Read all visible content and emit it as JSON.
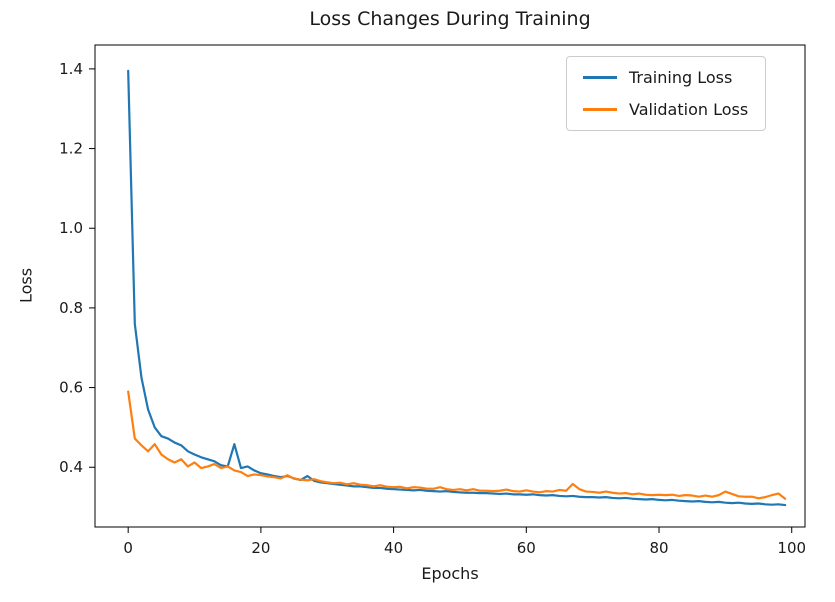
{
  "chart_data": {
    "type": "line",
    "title": "Loss Changes During Training",
    "xlabel": "Epochs",
    "ylabel": "Loss",
    "xlim": [
      -5,
      102
    ],
    "ylim": [
      0.25,
      1.46
    ],
    "grid": false,
    "legend_position": "upper right",
    "xticks": {
      "values": [
        0,
        20,
        40,
        60,
        80,
        100
      ],
      "labels": [
        "0",
        "20",
        "40",
        "60",
        "80",
        "100"
      ]
    },
    "yticks": {
      "values": [
        0.4,
        0.6,
        0.8,
        1.0,
        1.2,
        1.4
      ],
      "labels": [
        "0.4",
        "0.6",
        "0.8",
        "1.0",
        "1.2",
        "1.4"
      ]
    },
    "x": {
      "start": 0,
      "step": 1,
      "count": 100
    },
    "series": [
      {
        "id": "training-loss",
        "name": "Training Loss",
        "color": "#1f77b4",
        "values": [
          1.395,
          0.76,
          0.625,
          0.545,
          0.5,
          0.478,
          0.472,
          0.462,
          0.455,
          0.44,
          0.432,
          0.425,
          0.42,
          0.415,
          0.405,
          0.402,
          0.458,
          0.398,
          0.402,
          0.392,
          0.385,
          0.382,
          0.378,
          0.375,
          0.378,
          0.372,
          0.368,
          0.378,
          0.366,
          0.362,
          0.36,
          0.358,
          0.356,
          0.354,
          0.352,
          0.352,
          0.35,
          0.348,
          0.348,
          0.346,
          0.345,
          0.344,
          0.343,
          0.342,
          0.343,
          0.341,
          0.34,
          0.339,
          0.34,
          0.338,
          0.337,
          0.336,
          0.336,
          0.335,
          0.335,
          0.334,
          0.333,
          0.334,
          0.332,
          0.332,
          0.331,
          0.332,
          0.33,
          0.329,
          0.33,
          0.328,
          0.327,
          0.328,
          0.326,
          0.325,
          0.325,
          0.324,
          0.325,
          0.323,
          0.322,
          0.323,
          0.321,
          0.32,
          0.319,
          0.32,
          0.318,
          0.317,
          0.318,
          0.316,
          0.315,
          0.314,
          0.315,
          0.313,
          0.312,
          0.313,
          0.311,
          0.31,
          0.311,
          0.309,
          0.308,
          0.309,
          0.307,
          0.306,
          0.307,
          0.305
        ]
      },
      {
        "id": "validation-loss",
        "name": "Validation Loss",
        "color": "#ff7f0e",
        "values": [
          0.59,
          0.472,
          0.455,
          0.44,
          0.458,
          0.432,
          0.42,
          0.412,
          0.42,
          0.402,
          0.412,
          0.398,
          0.402,
          0.408,
          0.398,
          0.402,
          0.392,
          0.388,
          0.378,
          0.382,
          0.38,
          0.377,
          0.375,
          0.372,
          0.38,
          0.371,
          0.369,
          0.367,
          0.37,
          0.365,
          0.362,
          0.36,
          0.361,
          0.357,
          0.36,
          0.356,
          0.355,
          0.352,
          0.355,
          0.351,
          0.35,
          0.351,
          0.347,
          0.35,
          0.349,
          0.346,
          0.346,
          0.35,
          0.345,
          0.343,
          0.345,
          0.342,
          0.345,
          0.341,
          0.341,
          0.34,
          0.341,
          0.344,
          0.34,
          0.339,
          0.342,
          0.339,
          0.337,
          0.34,
          0.339,
          0.343,
          0.341,
          0.358,
          0.345,
          0.339,
          0.338,
          0.336,
          0.339,
          0.336,
          0.334,
          0.335,
          0.332,
          0.334,
          0.331,
          0.33,
          0.331,
          0.33,
          0.331,
          0.328,
          0.33,
          0.329,
          0.326,
          0.329,
          0.326,
          0.33,
          0.339,
          0.333,
          0.327,
          0.326,
          0.326,
          0.322,
          0.325,
          0.33,
          0.334,
          0.321
        ]
      }
    ]
  }
}
